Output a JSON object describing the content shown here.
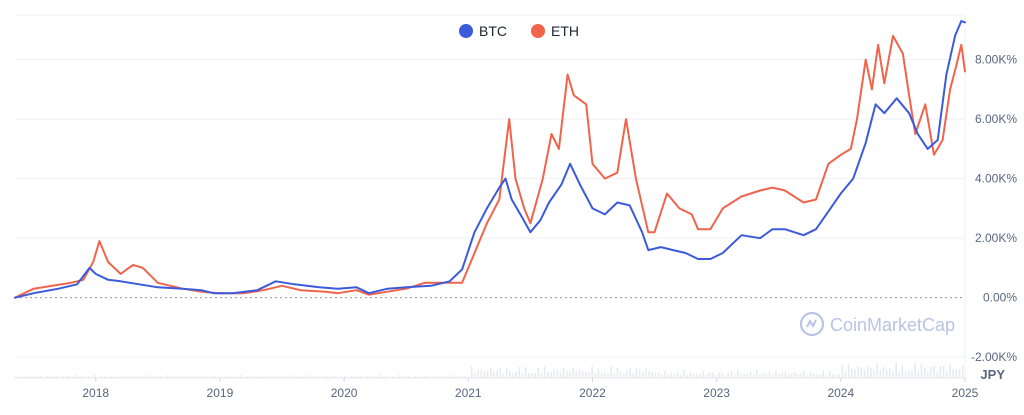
{
  "chart_data": {
    "type": "line",
    "title": "",
    "xlabel": "",
    "ylabel": "",
    "currency_label": "JPY",
    "watermark": "CoinMarketCap",
    "legend_position": "top-center",
    "grid": true,
    "ylim": [
      -2700,
      9500
    ],
    "xlim": [
      2017.35,
      2025.0
    ],
    "x_ticks": [
      {
        "value": 2018,
        "label": "2018"
      },
      {
        "value": 2019,
        "label": "2019"
      },
      {
        "value": 2020,
        "label": "2020"
      },
      {
        "value": 2021,
        "label": "2021"
      },
      {
        "value": 2022,
        "label": "2022"
      },
      {
        "value": 2023,
        "label": "2023"
      },
      {
        "value": 2024,
        "label": "2024"
      },
      {
        "value": 2025,
        "label": "2025"
      }
    ],
    "y_ticks": [
      {
        "value": 8000,
        "label": "8.00K%"
      },
      {
        "value": 6000,
        "label": "6.00K%"
      },
      {
        "value": 4000,
        "label": "4.00K%"
      },
      {
        "value": 2000,
        "label": "2.00K%"
      },
      {
        "value": 0,
        "label": "0.00%"
      },
      {
        "value": -2000,
        "label": "-2.00K%"
      }
    ],
    "series": [
      {
        "name": "BTC",
        "color": "#3b5bdb",
        "points": [
          [
            2017.35,
            0
          ],
          [
            2017.5,
            150
          ],
          [
            2017.7,
            300
          ],
          [
            2017.85,
            450
          ],
          [
            2017.95,
            1000
          ],
          [
            2018.0,
            800
          ],
          [
            2018.1,
            600
          ],
          [
            2018.2,
            550
          ],
          [
            2018.35,
            450
          ],
          [
            2018.5,
            350
          ],
          [
            2018.7,
            300
          ],
          [
            2018.85,
            250
          ],
          [
            2018.95,
            150
          ],
          [
            2019.1,
            150
          ],
          [
            2019.3,
            250
          ],
          [
            2019.45,
            550
          ],
          [
            2019.6,
            450
          ],
          [
            2019.8,
            350
          ],
          [
            2019.95,
            300
          ],
          [
            2020.1,
            350
          ],
          [
            2020.2,
            150
          ],
          [
            2020.35,
            300
          ],
          [
            2020.5,
            350
          ],
          [
            2020.7,
            400
          ],
          [
            2020.85,
            550
          ],
          [
            2020.95,
            950
          ],
          [
            2021.05,
            2200
          ],
          [
            2021.15,
            3000
          ],
          [
            2021.25,
            3700
          ],
          [
            2021.3,
            4000
          ],
          [
            2021.35,
            3300
          ],
          [
            2021.42,
            2800
          ],
          [
            2021.5,
            2200
          ],
          [
            2021.58,
            2600
          ],
          [
            2021.65,
            3200
          ],
          [
            2021.75,
            3800
          ],
          [
            2021.82,
            4500
          ],
          [
            2021.9,
            3800
          ],
          [
            2022.0,
            3000
          ],
          [
            2022.1,
            2800
          ],
          [
            2022.2,
            3200
          ],
          [
            2022.3,
            3100
          ],
          [
            2022.4,
            2200
          ],
          [
            2022.45,
            1600
          ],
          [
            2022.55,
            1700
          ],
          [
            2022.65,
            1600
          ],
          [
            2022.75,
            1500
          ],
          [
            2022.85,
            1300
          ],
          [
            2022.95,
            1300
          ],
          [
            2023.05,
            1500
          ],
          [
            2023.2,
            2100
          ],
          [
            2023.35,
            2000
          ],
          [
            2023.45,
            2300
          ],
          [
            2023.55,
            2300
          ],
          [
            2023.7,
            2100
          ],
          [
            2023.8,
            2300
          ],
          [
            2023.9,
            2900
          ],
          [
            2024.0,
            3500
          ],
          [
            2024.1,
            4000
          ],
          [
            2024.2,
            5200
          ],
          [
            2024.28,
            6500
          ],
          [
            2024.35,
            6200
          ],
          [
            2024.45,
            6700
          ],
          [
            2024.55,
            6200
          ],
          [
            2024.62,
            5500
          ],
          [
            2024.7,
            5000
          ],
          [
            2024.78,
            5300
          ],
          [
            2024.85,
            7500
          ],
          [
            2024.92,
            8800
          ],
          [
            2024.97,
            9300
          ],
          [
            2025.0,
            9250
          ]
        ]
      },
      {
        "name": "ETH",
        "color": "#f0644c",
        "points": [
          [
            2017.35,
            0
          ],
          [
            2017.5,
            300
          ],
          [
            2017.65,
            400
          ],
          [
            2017.8,
            500
          ],
          [
            2017.9,
            600
          ],
          [
            2017.98,
            1200
          ],
          [
            2018.03,
            1900
          ],
          [
            2018.1,
            1200
          ],
          [
            2018.2,
            800
          ],
          [
            2018.3,
            1100
          ],
          [
            2018.38,
            1000
          ],
          [
            2018.5,
            500
          ],
          [
            2018.7,
            300
          ],
          [
            2018.85,
            200
          ],
          [
            2019.0,
            150
          ],
          [
            2019.2,
            150
          ],
          [
            2019.35,
            250
          ],
          [
            2019.5,
            400
          ],
          [
            2019.65,
            250
          ],
          [
            2019.85,
            200
          ],
          [
            2019.95,
            150
          ],
          [
            2020.1,
            250
          ],
          [
            2020.2,
            100
          ],
          [
            2020.35,
            200
          ],
          [
            2020.5,
            300
          ],
          [
            2020.65,
            500
          ],
          [
            2020.85,
            500
          ],
          [
            2020.95,
            500
          ],
          [
            2021.05,
            1500
          ],
          [
            2021.15,
            2500
          ],
          [
            2021.25,
            3300
          ],
          [
            2021.33,
            6000
          ],
          [
            2021.38,
            4000
          ],
          [
            2021.45,
            3000
          ],
          [
            2021.5,
            2500
          ],
          [
            2021.6,
            4000
          ],
          [
            2021.67,
            5500
          ],
          [
            2021.73,
            5000
          ],
          [
            2021.8,
            7500
          ],
          [
            2021.85,
            6800
          ],
          [
            2021.95,
            6500
          ],
          [
            2022.0,
            4500
          ],
          [
            2022.1,
            4000
          ],
          [
            2022.2,
            4200
          ],
          [
            2022.27,
            6000
          ],
          [
            2022.35,
            4000
          ],
          [
            2022.45,
            2200
          ],
          [
            2022.5,
            2200
          ],
          [
            2022.6,
            3500
          ],
          [
            2022.7,
            3000
          ],
          [
            2022.8,
            2800
          ],
          [
            2022.85,
            2300
          ],
          [
            2022.95,
            2300
          ],
          [
            2023.05,
            3000
          ],
          [
            2023.2,
            3400
          ],
          [
            2023.35,
            3600
          ],
          [
            2023.45,
            3700
          ],
          [
            2023.55,
            3600
          ],
          [
            2023.7,
            3200
          ],
          [
            2023.8,
            3300
          ],
          [
            2023.9,
            4500
          ],
          [
            2024.0,
            4800
          ],
          [
            2024.08,
            5000
          ],
          [
            2024.13,
            6000
          ],
          [
            2024.2,
            8000
          ],
          [
            2024.25,
            7000
          ],
          [
            2024.3,
            8500
          ],
          [
            2024.35,
            7200
          ],
          [
            2024.42,
            8800
          ],
          [
            2024.5,
            8200
          ],
          [
            2024.55,
            6800
          ],
          [
            2024.6,
            5500
          ],
          [
            2024.68,
            6500
          ],
          [
            2024.75,
            4800
          ],
          [
            2024.82,
            5300
          ],
          [
            2024.88,
            7000
          ],
          [
            2024.93,
            7800
          ],
          [
            2024.97,
            8500
          ],
          [
            2025.0,
            7600
          ]
        ]
      }
    ]
  }
}
